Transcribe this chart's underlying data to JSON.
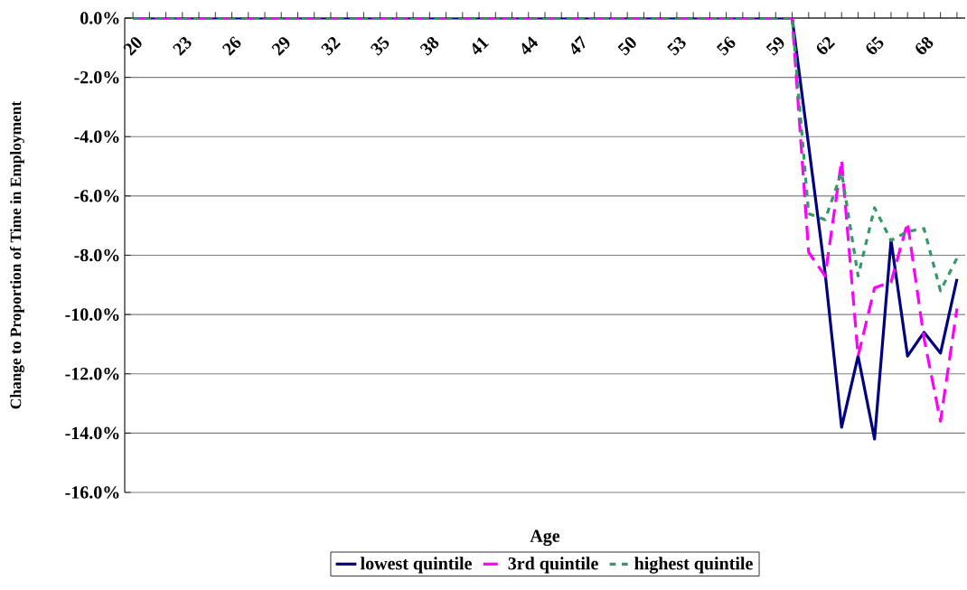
{
  "chart_data": {
    "type": "line",
    "xlabel": "Age",
    "ylabel": "Change to Proportion of Time in Employment",
    "categories": [
      "20",
      null,
      null,
      "23",
      null,
      null,
      "26",
      null,
      null,
      "29",
      null,
      null,
      "32",
      null,
      null,
      "35",
      null,
      null,
      "38",
      null,
      null,
      "41",
      null,
      null,
      "44",
      null,
      null,
      "47",
      null,
      null,
      "50",
      null,
      null,
      "53",
      null,
      null,
      "56",
      null,
      null,
      "59",
      null,
      null,
      "62",
      null,
      null,
      "65",
      null,
      null,
      "68",
      null,
      null
    ],
    "series": [
      {
        "name": "lowest quintile",
        "color": "#000080",
        "line_style": "solid",
        "values": [
          0,
          0,
          0,
          0,
          0,
          0,
          0,
          0,
          0,
          0,
          0,
          0,
          0,
          0,
          0,
          0,
          0,
          0,
          0,
          0,
          0,
          0,
          0,
          0,
          0,
          0,
          0,
          0,
          0,
          0,
          0,
          0,
          0,
          0,
          0,
          0,
          0,
          0,
          0,
          0,
          0,
          -4.3,
          -8.6,
          -13.8,
          -11.4,
          -14.2,
          -7.5,
          -11.4,
          -10.6,
          -11.3,
          -8.8
        ]
      },
      {
        "name": "3rd quintile",
        "color": "#ff00ff",
        "line_style": "dashed",
        "values": [
          0,
          0,
          0,
          0,
          0,
          0,
          0,
          0,
          0,
          0,
          0,
          0,
          0,
          0,
          0,
          0,
          0,
          0,
          0,
          0,
          0,
          0,
          0,
          0,
          0,
          0,
          0,
          0,
          0,
          0,
          0,
          0,
          0,
          0,
          0,
          0,
          0,
          0,
          0,
          0,
          0,
          -7.9,
          -8.7,
          -4.8,
          -11.4,
          -9.1,
          -8.9,
          -6.9,
          -10.8,
          -13.6,
          -9.8
        ]
      },
      {
        "name": "highest quintile",
        "color": "#339966",
        "line_style": "dotted",
        "values": [
          0,
          0,
          0,
          0,
          0,
          0,
          0,
          0,
          0,
          0,
          0,
          0,
          0,
          0,
          0,
          0,
          0,
          0,
          0,
          0,
          0,
          0,
          0,
          0,
          0,
          0,
          0,
          0,
          0,
          0,
          0,
          0,
          0,
          0,
          0,
          0,
          0,
          0,
          0,
          0,
          0,
          -6.6,
          -6.8,
          -5.2,
          -8.7,
          -6.4,
          -7.5,
          -7.2,
          -7.1,
          -9.2,
          -8.1
        ]
      }
    ],
    "ylim": [
      -16,
      0
    ],
    "yticks": [
      {
        "value": 0,
        "label": "0.0%"
      },
      {
        "value": -2,
        "label": "-2.0%"
      },
      {
        "value": -4,
        "label": "-4.0%"
      },
      {
        "value": -6,
        "label": "-6.0%"
      },
      {
        "value": -8,
        "label": "-8.0%"
      },
      {
        "value": -10,
        "label": "-10.0%"
      },
      {
        "value": -12,
        "label": "-12.0%"
      },
      {
        "value": -14,
        "label": "-14.0%"
      },
      {
        "value": -16,
        "label": "-16.0%"
      }
    ],
    "grid": "y",
    "legend": "bottom"
  }
}
